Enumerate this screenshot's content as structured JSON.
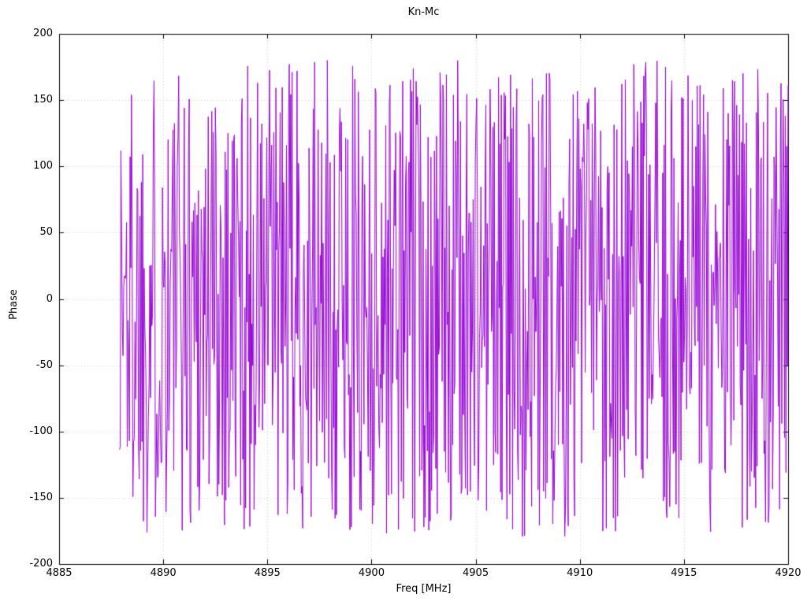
{
  "title": "Kn-Mc",
  "chart_data": {
    "type": "line",
    "title": "Kn-Mc",
    "xlabel": "Freq [MHz]",
    "ylabel": "Phase",
    "xlim": [
      4885,
      4920
    ],
    "ylim": [
      -200,
      200
    ],
    "xticks": [
      4885,
      4890,
      4895,
      4900,
      4905,
      4910,
      4915,
      4920
    ],
    "yticks": [
      -200,
      -150,
      -100,
      -50,
      0,
      50,
      100,
      150,
      200
    ],
    "grid": true,
    "grid_style": "dotted",
    "legend_position": "none",
    "line_color": "#9400d3",
    "grid_color": "#c8c8c8",
    "axis_color": "#000000",
    "series": [
      {
        "name": "phase",
        "description": "Densely wrapped interferometric phase noise, uniformly scattered between -180 and +180 degrees; data begins near 4888 MHz and extends to 4920 MHz with near-vertical jumps between consecutive samples.",
        "x_start": 4887.9,
        "x_end": 4920.0,
        "n_points": 950,
        "y_min": -180,
        "y_max": 180,
        "seed": 1337
      }
    ]
  }
}
